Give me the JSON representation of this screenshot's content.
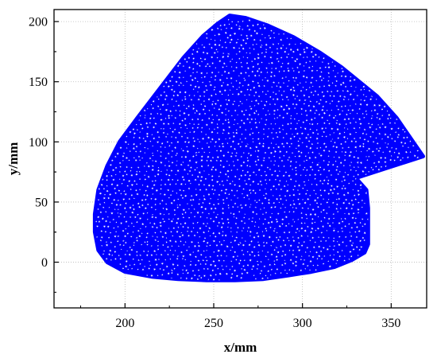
{
  "chart_data": {
    "type": "scatter",
    "title": "",
    "xlabel": "x/mm",
    "ylabel": "y/mm",
    "xlim": [
      160,
      370
    ],
    "ylim": [
      -38,
      210
    ],
    "xticks": [
      200,
      250,
      300,
      350
    ],
    "yticks": [
      0,
      50,
      100,
      150,
      200
    ],
    "xtick_labels": [
      "200",
      "250",
      "300",
      "350"
    ],
    "ytick_labels": [
      "0",
      "50",
      "100",
      "150",
      "200"
    ],
    "grid": true,
    "legend": "none",
    "marker": "star",
    "marker_edge_color": "#0000ff",
    "marker_face_color": "#ffffff",
    "series": [
      {
        "region_outline": [
          [
            259,
            205
          ],
          [
            268,
            203
          ],
          [
            280,
            197
          ],
          [
            295,
            187
          ],
          [
            310,
            174
          ],
          [
            322,
            162
          ],
          [
            332,
            150
          ],
          [
            342,
            138
          ],
          [
            353,
            120
          ],
          [
            360,
            105
          ],
          [
            368,
            88
          ],
          [
            330,
            70
          ],
          [
            336,
            60
          ],
          [
            337,
            45
          ],
          [
            337,
            30
          ],
          [
            337,
            15
          ],
          [
            335,
            8
          ],
          [
            328,
            2
          ],
          [
            318,
            -4
          ],
          [
            305,
            -8
          ],
          [
            292,
            -11
          ],
          [
            278,
            -14
          ],
          [
            262,
            -15
          ],
          [
            246,
            -15
          ],
          [
            230,
            -14
          ],
          [
            215,
            -12
          ],
          [
            200,
            -8
          ],
          [
            190,
            0
          ],
          [
            185,
            10
          ],
          [
            183,
            25
          ],
          [
            183,
            40
          ],
          [
            185,
            60
          ],
          [
            190,
            80
          ],
          [
            197,
            100
          ],
          [
            207,
            120
          ],
          [
            220,
            145
          ],
          [
            233,
            170
          ],
          [
            244,
            188
          ],
          [
            252,
            198
          ]
        ]
      }
    ]
  }
}
